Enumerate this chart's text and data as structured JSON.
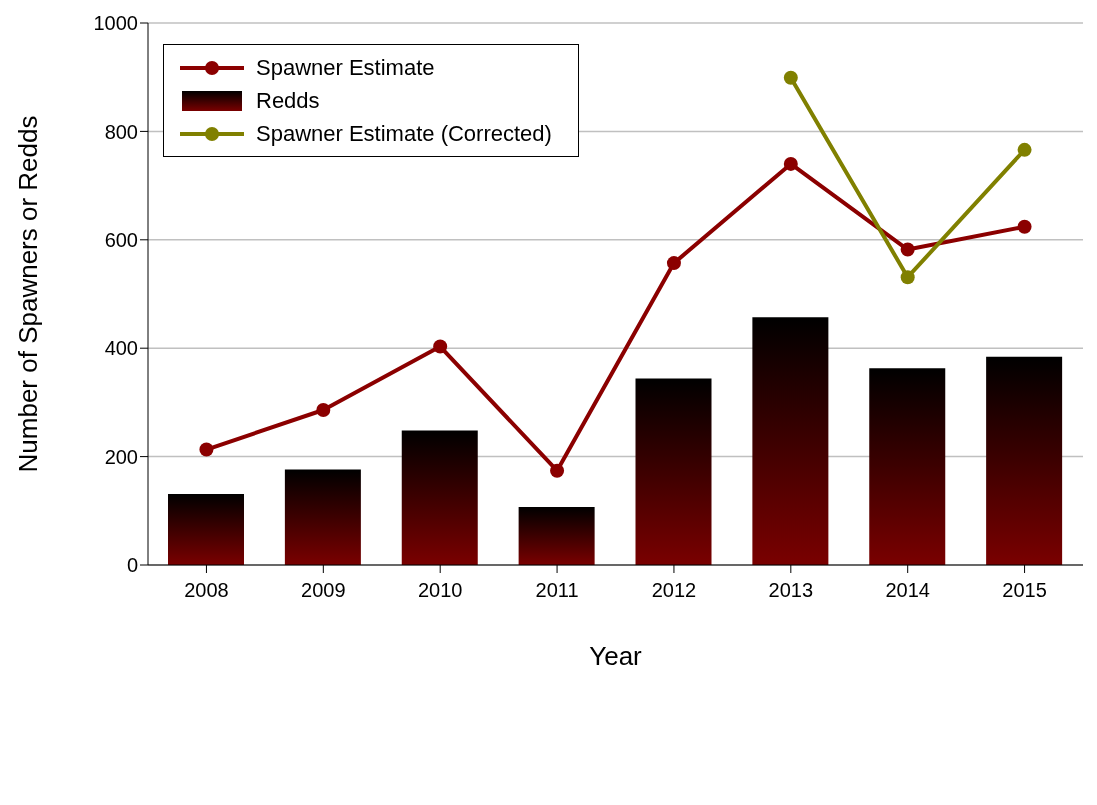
{
  "chart_data": {
    "type": "bar",
    "xlabel": "Year",
    "ylabel": "Number of Spawners or Redds",
    "categories": [
      "2008",
      "2009",
      "2010",
      "2011",
      "2012",
      "2013",
      "2014",
      "2015"
    ],
    "series": [
      {
        "name": "Spawner Estimate",
        "type": "line",
        "color": "#8b0000",
        "values": [
          213,
          286,
          403,
          174,
          557,
          740,
          582,
          624
        ]
      },
      {
        "name": "Redds",
        "color": "#7a0000",
        "values": [
          131,
          176,
          248,
          107,
          344,
          457,
          363,
          384
        ]
      },
      {
        "name": "Spawner Estimate (Corrected)",
        "type": "line",
        "color": "#808000",
        "values": [
          null,
          null,
          null,
          null,
          null,
          899,
          531,
          766
        ]
      }
    ],
    "ylim": [
      0,
      1000
    ],
    "yticks": [
      0,
      200,
      400,
      600,
      800,
      1000
    ],
    "grid": "y",
    "legend": "top left",
    "marker": "circle",
    "line_style": "solid"
  }
}
